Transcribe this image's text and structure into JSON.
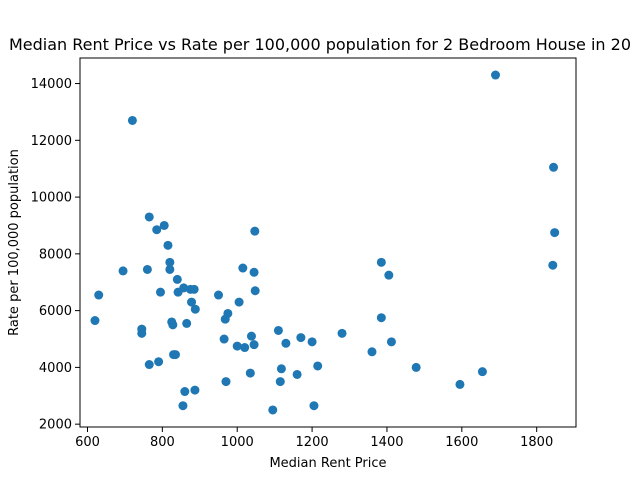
{
  "chart_data": {
    "type": "scatter",
    "title": "Median Rent Price vs Rate per 100,000 population for 2 Bedroom House in 20",
    "xlabel": "Median Rent Price",
    "ylabel": "Rate per 100,000 population",
    "xlim": [
      580,
      1905
    ],
    "ylim": [
      1900,
      14900
    ],
    "xticks": [
      600,
      800,
      1000,
      1200,
      1400,
      1600,
      1800
    ],
    "yticks": [
      2000,
      4000,
      6000,
      8000,
      10000,
      12000,
      14000
    ],
    "grid": false,
    "marker_color": "#1f77b4",
    "series": [
      {
        "points": [
          [
            620,
            5650
          ],
          [
            630,
            6550
          ],
          [
            695,
            7400
          ],
          [
            720,
            12700
          ],
          [
            745,
            5350
          ],
          [
            745,
            5200
          ],
          [
            760,
            7450
          ],
          [
            765,
            9300
          ],
          [
            765,
            4100
          ],
          [
            785,
            8850
          ],
          [
            790,
            4200
          ],
          [
            795,
            6650
          ],
          [
            805,
            9000
          ],
          [
            815,
            8300
          ],
          [
            820,
            7700
          ],
          [
            820,
            7450
          ],
          [
            825,
            5600
          ],
          [
            828,
            5500
          ],
          [
            830,
            4450
          ],
          [
            835,
            4450
          ],
          [
            840,
            7100
          ],
          [
            842,
            6650
          ],
          [
            855,
            2650
          ],
          [
            857,
            6800
          ],
          [
            860,
            3150
          ],
          [
            865,
            5550
          ],
          [
            875,
            6750
          ],
          [
            878,
            6300
          ],
          [
            885,
            6750
          ],
          [
            887,
            3200
          ],
          [
            888,
            6050
          ],
          [
            950,
            6550
          ],
          [
            965,
            5000
          ],
          [
            968,
            5700
          ],
          [
            970,
            3500
          ],
          [
            975,
            5900
          ],
          [
            1000,
            4750
          ],
          [
            1005,
            6300
          ],
          [
            1015,
            7500
          ],
          [
            1020,
            4700
          ],
          [
            1035,
            3800
          ],
          [
            1038,
            5100
          ],
          [
            1045,
            7350
          ],
          [
            1045,
            4800
          ],
          [
            1047,
            8800
          ],
          [
            1048,
            6700
          ],
          [
            1095,
            2500
          ],
          [
            1110,
            5300
          ],
          [
            1115,
            3500
          ],
          [
            1118,
            3950
          ],
          [
            1130,
            4850
          ],
          [
            1160,
            3750
          ],
          [
            1170,
            5050
          ],
          [
            1200,
            4900
          ],
          [
            1205,
            2650
          ],
          [
            1215,
            4050
          ],
          [
            1280,
            5200
          ],
          [
            1360,
            4550
          ],
          [
            1385,
            7700
          ],
          [
            1385,
            5750
          ],
          [
            1405,
            7250
          ],
          [
            1412,
            4900
          ],
          [
            1478,
            4000
          ],
          [
            1595,
            3400
          ],
          [
            1655,
            3850
          ],
          [
            1690,
            14300
          ],
          [
            1843,
            7600
          ],
          [
            1845,
            11050
          ],
          [
            1848,
            8750
          ]
        ]
      }
    ]
  }
}
